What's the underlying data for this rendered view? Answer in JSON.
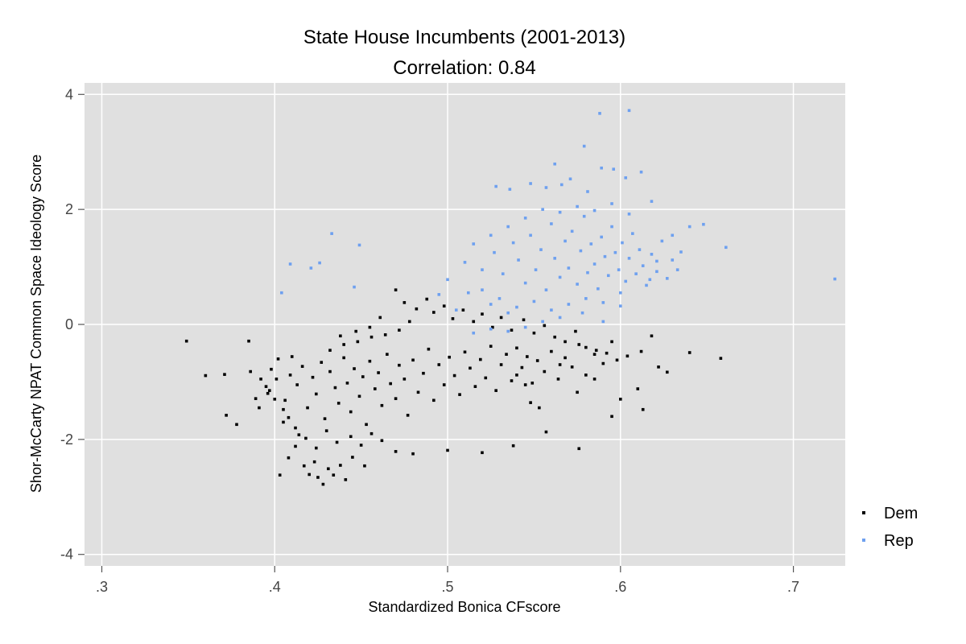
{
  "chart_data": {
    "type": "scatter",
    "title": "State House Incumbents (2001-2013)",
    "subtitle": "Correlation: 0.84",
    "xlabel": "Standardized Bonica CFscore",
    "ylabel": "Shor-McCarty NPAT Common Space Ideology Score",
    "xlim": [
      0.29,
      0.73
    ],
    "ylim": [
      -4.2,
      4.2
    ],
    "x_ticks": [
      {
        "value": 0.3,
        "label": ".3"
      },
      {
        "value": 0.4,
        "label": ".4"
      },
      {
        "value": 0.5,
        "label": ".5"
      },
      {
        "value": 0.6,
        "label": ".6"
      },
      {
        "value": 0.7,
        "label": ".7"
      }
    ],
    "y_ticks": [
      {
        "value": 4,
        "label": "4"
      },
      {
        "value": 2,
        "label": "2"
      },
      {
        "value": 0,
        "label": "0"
      },
      {
        "value": -2,
        "label": "-2"
      },
      {
        "value": -4,
        "label": "-4"
      }
    ],
    "grid": true,
    "legend_position": "right",
    "colors": {
      "panel": "#e0e0e0",
      "grid": "#ffffff",
      "Dem": "#000000",
      "Rep": "#6ea0ef"
    },
    "series": [
      {
        "name": "Dem",
        "color": "#000000",
        "points": [
          [
            0.349,
            -0.29
          ],
          [
            0.36,
            -0.89
          ],
          [
            0.371,
            -0.87
          ],
          [
            0.372,
            -1.58
          ],
          [
            0.378,
            -1.74
          ],
          [
            0.385,
            -0.29
          ],
          [
            0.389,
            -1.29
          ],
          [
            0.391,
            -1.45
          ],
          [
            0.395,
            -1.08
          ],
          [
            0.398,
            -0.78
          ],
          [
            0.401,
            -0.95
          ],
          [
            0.403,
            -2.62
          ],
          [
            0.405,
            -1.7
          ],
          [
            0.408,
            -2.32
          ],
          [
            0.412,
            -2.12
          ],
          [
            0.41,
            -0.56
          ],
          [
            0.414,
            -1.92
          ],
          [
            0.417,
            -2.46
          ],
          [
            0.42,
            -2.61
          ],
          [
            0.423,
            -2.39
          ],
          [
            0.425,
            -2.66
          ],
          [
            0.428,
            -2.78
          ],
          [
            0.431,
            -2.51
          ],
          [
            0.434,
            -2.62
          ],
          [
            0.438,
            -2.45
          ],
          [
            0.441,
            -2.7
          ],
          [
            0.445,
            -2.31
          ],
          [
            0.452,
            -2.46
          ],
          [
            0.47,
            -2.21
          ],
          [
            0.48,
            -2.25
          ],
          [
            0.5,
            -2.19
          ],
          [
            0.52,
            -2.23
          ],
          [
            0.538,
            -2.11
          ],
          [
            0.557,
            -1.87
          ],
          [
            0.576,
            -2.16
          ],
          [
            0.595,
            -1.6
          ],
          [
            0.613,
            -1.48
          ],
          [
            0.618,
            -0.2
          ],
          [
            0.622,
            -0.74
          ],
          [
            0.658,
            -0.59
          ],
          [
            0.64,
            -0.49
          ],
          [
            0.627,
            -0.83
          ],
          [
            0.61,
            -1.12
          ],
          [
            0.6,
            -1.3
          ],
          [
            0.585,
            -0.95
          ],
          [
            0.575,
            -1.18
          ],
          [
            0.565,
            -0.7
          ],
          [
            0.553,
            -1.45
          ],
          [
            0.548,
            -1.36
          ],
          [
            0.545,
            -1.05
          ],
          [
            0.54,
            -0.88
          ],
          [
            0.47,
            0.6
          ],
          [
            0.475,
            0.38
          ],
          [
            0.482,
            0.27
          ],
          [
            0.488,
            0.44
          ],
          [
            0.492,
            0.21
          ],
          [
            0.498,
            0.32
          ],
          [
            0.503,
            0.1
          ],
          [
            0.509,
            0.25
          ],
          [
            0.515,
            0.05
          ],
          [
            0.52,
            0.18
          ],
          [
            0.526,
            -0.05
          ],
          [
            0.531,
            0.12
          ],
          [
            0.537,
            -0.1
          ],
          [
            0.544,
            0.08
          ],
          [
            0.55,
            -0.15
          ],
          [
            0.556,
            -0.02
          ],
          [
            0.562,
            -0.22
          ],
          [
            0.568,
            -0.3
          ],
          [
            0.574,
            -0.12
          ],
          [
            0.58,
            -0.4
          ],
          [
            0.586,
            -0.45
          ],
          [
            0.592,
            -0.5
          ],
          [
            0.598,
            -0.62
          ],
          [
            0.604,
            -0.55
          ],
          [
            0.612,
            -0.47
          ],
          [
            0.386,
            -0.82
          ],
          [
            0.392,
            -0.95
          ],
          [
            0.397,
            -1.15
          ],
          [
            0.402,
            -0.6
          ],
          [
            0.406,
            -1.32
          ],
          [
            0.409,
            -0.88
          ],
          [
            0.413,
            -1.05
          ],
          [
            0.416,
            -0.73
          ],
          [
            0.419,
            -1.45
          ],
          [
            0.422,
            -0.92
          ],
          [
            0.424,
            -1.21
          ],
          [
            0.427,
            -0.66
          ],
          [
            0.429,
            -1.64
          ],
          [
            0.432,
            -0.82
          ],
          [
            0.435,
            -1.1
          ],
          [
            0.437,
            -1.37
          ],
          [
            0.44,
            -0.58
          ],
          [
            0.442,
            -1.02
          ],
          [
            0.444,
            -1.52
          ],
          [
            0.446,
            -0.77
          ],
          [
            0.449,
            -1.25
          ],
          [
            0.451,
            -0.91
          ],
          [
            0.453,
            -1.74
          ],
          [
            0.455,
            -0.64
          ],
          [
            0.458,
            -1.12
          ],
          [
            0.46,
            -0.84
          ],
          [
            0.462,
            -1.41
          ],
          [
            0.465,
            -0.52
          ],
          [
            0.467,
            -1.03
          ],
          [
            0.47,
            -1.29
          ],
          [
            0.472,
            -0.71
          ],
          [
            0.475,
            -0.95
          ],
          [
            0.477,
            -1.58
          ],
          [
            0.48,
            -0.62
          ],
          [
            0.483,
            -1.18
          ],
          [
            0.486,
            -0.85
          ],
          [
            0.489,
            -0.43
          ],
          [
            0.492,
            -1.32
          ],
          [
            0.495,
            -0.7
          ],
          [
            0.498,
            -1.05
          ],
          [
            0.501,
            -0.57
          ],
          [
            0.504,
            -0.89
          ],
          [
            0.507,
            -1.22
          ],
          [
            0.51,
            -0.48
          ],
          [
            0.513,
            -0.76
          ],
          [
            0.516,
            -1.08
          ],
          [
            0.519,
            -0.61
          ],
          [
            0.522,
            -0.93
          ],
          [
            0.525,
            -0.38
          ],
          [
            0.528,
            -1.15
          ],
          [
            0.531,
            -0.7
          ],
          [
            0.534,
            -0.52
          ],
          [
            0.537,
            -0.98
          ],
          [
            0.54,
            -0.41
          ],
          [
            0.543,
            -0.75
          ],
          [
            0.546,
            -0.56
          ],
          [
            0.549,
            -1.02
          ],
          [
            0.552,
            -0.63
          ],
          [
            0.556,
            -0.82
          ],
          [
            0.56,
            -0.47
          ],
          [
            0.564,
            -0.95
          ],
          [
            0.568,
            -0.58
          ],
          [
            0.572,
            -0.74
          ],
          [
            0.576,
            -0.35
          ],
          [
            0.58,
            -0.88
          ],
          [
            0.585,
            -0.52
          ],
          [
            0.59,
            -0.68
          ],
          [
            0.595,
            -0.3
          ],
          [
            0.43,
            -1.85
          ],
          [
            0.436,
            -2.05
          ],
          [
            0.444,
            -1.95
          ],
          [
            0.45,
            -2.1
          ],
          [
            0.456,
            -1.9
          ],
          [
            0.462,
            -2.02
          ],
          [
            0.424,
            -2.15
          ],
          [
            0.418,
            -1.98
          ],
          [
            0.412,
            -1.8
          ],
          [
            0.408,
            -1.62
          ],
          [
            0.405,
            -1.48
          ],
          [
            0.4,
            -1.3
          ],
          [
            0.396,
            -1.2
          ],
          [
            0.432,
            -0.45
          ],
          [
            0.44,
            -0.35
          ],
          [
            0.448,
            -0.3
          ],
          [
            0.456,
            -0.22
          ],
          [
            0.464,
            -0.18
          ],
          [
            0.472,
            -0.1
          ],
          [
            0.478,
            0.05
          ],
          [
            0.461,
            0.12
          ],
          [
            0.455,
            -0.05
          ],
          [
            0.447,
            -0.12
          ],
          [
            0.438,
            -0.2
          ]
        ]
      },
      {
        "name": "Rep",
        "color": "#6ea0ef",
        "points": [
          [
            0.404,
            0.55
          ],
          [
            0.409,
            1.05
          ],
          [
            0.421,
            0.98
          ],
          [
            0.426,
            1.07
          ],
          [
            0.433,
            1.58
          ],
          [
            0.446,
            0.65
          ],
          [
            0.449,
            1.38
          ],
          [
            0.724,
            0.79
          ],
          [
            0.588,
            3.67
          ],
          [
            0.605,
            3.72
          ],
          [
            0.579,
            3.1
          ],
          [
            0.562,
            2.79
          ],
          [
            0.596,
            2.7
          ],
          [
            0.612,
            2.65
          ],
          [
            0.589,
            2.72
          ],
          [
            0.603,
            2.55
          ],
          [
            0.571,
            2.53
          ],
          [
            0.581,
            2.31
          ],
          [
            0.548,
            2.45
          ],
          [
            0.528,
            2.4
          ],
          [
            0.536,
            2.35
          ],
          [
            0.557,
            2.38
          ],
          [
            0.566,
            2.43
          ],
          [
            0.618,
            2.14
          ],
          [
            0.648,
            1.74
          ],
          [
            0.661,
            1.34
          ],
          [
            0.64,
            1.7
          ],
          [
            0.63,
            1.55
          ],
          [
            0.635,
            1.26
          ],
          [
            0.621,
            1.1
          ],
          [
            0.617,
            0.78
          ],
          [
            0.6,
            0.32
          ],
          [
            0.59,
            0.05
          ],
          [
            0.578,
            0.2
          ],
          [
            0.565,
            0.12
          ],
          [
            0.555,
            0.05
          ],
          [
            0.545,
            -0.05
          ],
          [
            0.535,
            -0.12
          ],
          [
            0.525,
            -0.08
          ],
          [
            0.515,
            -0.15
          ],
          [
            0.505,
            0.25
          ],
          [
            0.495,
            0.52
          ],
          [
            0.5,
            0.78
          ],
          [
            0.51,
            1.08
          ],
          [
            0.52,
            0.95
          ],
          [
            0.527,
            1.25
          ],
          [
            0.532,
            0.88
          ],
          [
            0.538,
            1.42
          ],
          [
            0.541,
            1.12
          ],
          [
            0.545,
            0.72
          ],
          [
            0.548,
            1.55
          ],
          [
            0.551,
            0.95
          ],
          [
            0.554,
            1.3
          ],
          [
            0.557,
            0.6
          ],
          [
            0.56,
            1.75
          ],
          [
            0.562,
            1.15
          ],
          [
            0.565,
            0.82
          ],
          [
            0.568,
            1.45
          ],
          [
            0.57,
            0.98
          ],
          [
            0.572,
            1.62
          ],
          [
            0.575,
            0.7
          ],
          [
            0.577,
            1.28
          ],
          [
            0.579,
            1.88
          ],
          [
            0.581,
            0.9
          ],
          [
            0.583,
            1.4
          ],
          [
            0.585,
            1.05
          ],
          [
            0.587,
            0.62
          ],
          [
            0.589,
            1.52
          ],
          [
            0.591,
            1.18
          ],
          [
            0.593,
            0.85
          ],
          [
            0.595,
            1.7
          ],
          [
            0.597,
            1.25
          ],
          [
            0.599,
            0.95
          ],
          [
            0.601,
            1.42
          ],
          [
            0.603,
            0.75
          ],
          [
            0.605,
            1.15
          ],
          [
            0.607,
            1.58
          ],
          [
            0.609,
            0.88
          ],
          [
            0.611,
            1.3
          ],
          [
            0.613,
            1.02
          ],
          [
            0.615,
            0.68
          ],
          [
            0.618,
            1.22
          ],
          [
            0.621,
            0.92
          ],
          [
            0.624,
            1.45
          ],
          [
            0.627,
            0.8
          ],
          [
            0.63,
            1.12
          ],
          [
            0.633,
            0.95
          ],
          [
            0.54,
            0.3
          ],
          [
            0.55,
            0.4
          ],
          [
            0.56,
            0.25
          ],
          [
            0.57,
            0.35
          ],
          [
            0.58,
            0.45
          ],
          [
            0.59,
            0.38
          ],
          [
            0.6,
            0.55
          ],
          [
            0.555,
            2.0
          ],
          [
            0.565,
            1.95
          ],
          [
            0.575,
            2.05
          ],
          [
            0.585,
            1.98
          ],
          [
            0.595,
            2.1
          ],
          [
            0.605,
            1.92
          ],
          [
            0.545,
            1.85
          ],
          [
            0.535,
            1.7
          ],
          [
            0.525,
            1.55
          ],
          [
            0.515,
            1.4
          ],
          [
            0.52,
            0.6
          ],
          [
            0.53,
            0.45
          ],
          [
            0.535,
            0.2
          ],
          [
            0.525,
            0.35
          ],
          [
            0.512,
            0.55
          ]
        ]
      }
    ]
  }
}
